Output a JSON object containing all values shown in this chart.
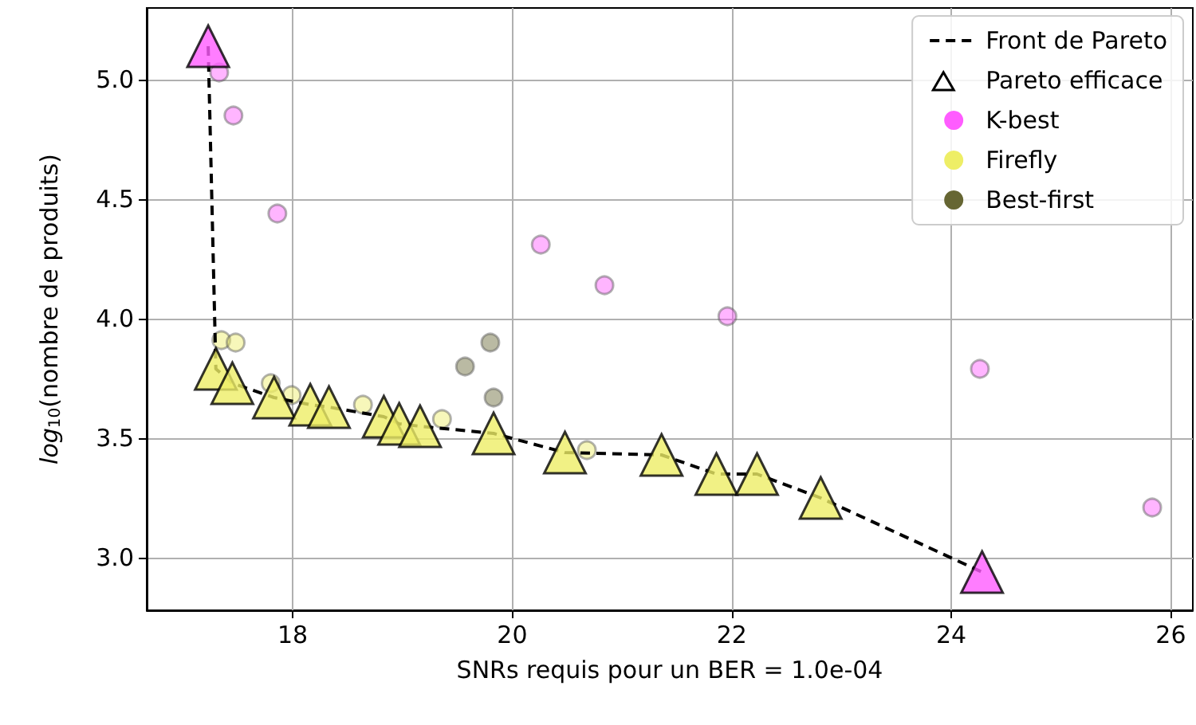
{
  "chart_data": {
    "type": "scatter",
    "xlabel": "SNRs requis pour un BER = 1.0e-04",
    "ylabel": "log$_{10}$(nombre de produits)",
    "xlim": [
      16.67,
      26.2
    ],
    "xticks": [
      18,
      20,
      22,
      24,
      26
    ],
    "ylim": [
      2.78,
      5.3
    ],
    "yticks": [
      {
        "value": 3,
        "label": "3.0"
      },
      3.5,
      {
        "value": 4,
        "label": "4.0"
      },
      4.5,
      {
        "value": 5,
        "label": "5.0"
      }
    ],
    "grid": true,
    "legend": "top right",
    "series": [
      {
        "name": "Front de Pareto",
        "type": "line",
        "color": "#000000",
        "line_style": "dashed",
        "marker": "none",
        "x": [
          17.23,
          17.3,
          17.45,
          17.83,
          18.16,
          18.33,
          18.83,
          18.97,
          19.16,
          19.83,
          20.48,
          21.36,
          21.86,
          22.23,
          22.81,
          24.28
        ],
        "values": [
          5.14,
          3.79,
          3.73,
          3.67,
          3.64,
          3.63,
          3.59,
          3.56,
          3.55,
          3.52,
          3.44,
          3.43,
          3.35,
          3.35,
          3.25,
          2.94
        ]
      },
      {
        "name": "Pareto efficace",
        "marker": "triangle",
        "colors": [
          "#ff5cff",
          "#eeee66",
          "#eeee66",
          "#eeee66",
          "#eeee66",
          "#eeee66",
          "#eeee66",
          "#eeee66",
          "#eeee66",
          "#eeee66",
          "#eeee66",
          "#eeee66",
          "#eeee66",
          "#eeee66",
          "#eeee66",
          "#ff5cff"
        ],
        "x": [
          17.23,
          17.3,
          17.45,
          17.83,
          18.16,
          18.33,
          18.83,
          18.97,
          19.16,
          19.83,
          20.48,
          21.36,
          21.86,
          22.23,
          22.81,
          24.28
        ],
        "values": [
          5.14,
          3.79,
          3.73,
          3.67,
          3.64,
          3.63,
          3.59,
          3.56,
          3.55,
          3.52,
          3.44,
          3.43,
          3.35,
          3.35,
          3.25,
          2.94
        ]
      },
      {
        "name": "K-best",
        "color": "#ff5cff",
        "marker": "circle",
        "x": [
          17.33,
          17.46,
          17.86,
          20.26,
          20.84,
          21.96,
          24.26,
          25.83
        ],
        "values": [
          5.03,
          4.85,
          4.44,
          4.31,
          4.14,
          4.01,
          3.79,
          3.21
        ]
      },
      {
        "name": "Firefly",
        "color": "#eeee66",
        "marker": "circle",
        "x": [
          17.35,
          17.48,
          17.8,
          17.99,
          18.64,
          19.36,
          20.68
        ],
        "values": [
          3.91,
          3.9,
          3.73,
          3.68,
          3.64,
          3.58,
          3.45
        ]
      },
      {
        "name": "Best-first",
        "color": "#666633",
        "marker": "circle",
        "x": [
          19.57,
          19.8,
          19.83
        ],
        "values": [
          3.8,
          3.9,
          3.67
        ]
      }
    ]
  }
}
